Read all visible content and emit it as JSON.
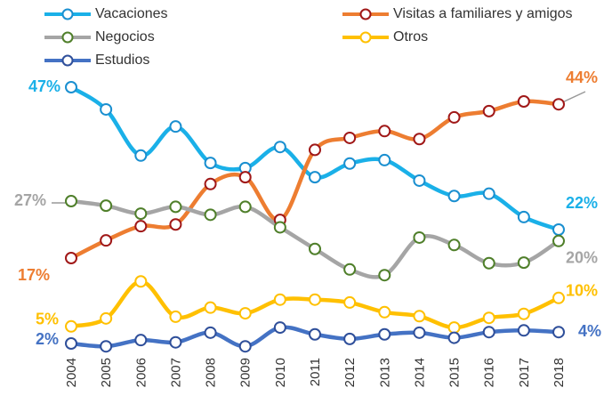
{
  "chart_data": {
    "type": "line",
    "categories": [
      "2004",
      "2005",
      "2006",
      "2007",
      "2008",
      "2009",
      "2010",
      "2011",
      "2012",
      "2013",
      "2014",
      "2015",
      "2016",
      "2017",
      "2018"
    ],
    "ylim": [
      0,
      50
    ],
    "series": [
      {
        "name": "Vacaciones",
        "color": "#1ab0e8",
        "marker_color": "#1a8fd0",
        "values": [
          47,
          43.1,
          35,
          40.1,
          33.7,
          32.8,
          36.5,
          31.2,
          33.6,
          34.2,
          30.6,
          27.9,
          28.3,
          24.2,
          22
        ],
        "value_labels": [
          "47%",
          null,
          null,
          null,
          null,
          null,
          null,
          null,
          null,
          null,
          null,
          null,
          null,
          null,
          "22%"
        ]
      },
      {
        "name": "Visitas a familiares y amigos",
        "color": "#ed7d31",
        "marker_color": "#a01818",
        "values": [
          17,
          20.1,
          22.6,
          22.9,
          30,
          31.2,
          23.7,
          36,
          38.1,
          39.3,
          37.9,
          41.7,
          42.8,
          44.5,
          44
        ],
        "value_labels": [
          "17%",
          null,
          null,
          null,
          null,
          null,
          null,
          null,
          null,
          null,
          null,
          null,
          null,
          null,
          "44%"
        ]
      },
      {
        "name": "Negocios",
        "color": "#a5a5a5",
        "marker_color": "#4f7f2a",
        "values": [
          27,
          26.2,
          24.8,
          26,
          24.6,
          26,
          22.4,
          18.6,
          15,
          14,
          20.6,
          19.3,
          16.1,
          16.2,
          20
        ],
        "value_labels": [
          "27%",
          null,
          null,
          null,
          null,
          null,
          null,
          null,
          null,
          null,
          null,
          null,
          null,
          null,
          "20%"
        ]
      },
      {
        "name": "Otros",
        "color": "#ffc000",
        "marker_color": "#ffc000",
        "values": [
          5,
          6.4,
          12.9,
          6.7,
          8.3,
          7.3,
          9.7,
          9.7,
          9.2,
          7.5,
          6.8,
          4.8,
          6.5,
          7.2,
          10
        ],
        "value_labels": [
          "5%",
          null,
          null,
          null,
          null,
          null,
          null,
          null,
          null,
          null,
          null,
          null,
          null,
          null,
          "10%"
        ]
      },
      {
        "name": "Estudios",
        "color": "#4472c4",
        "marker_color": "#2f4f9a",
        "values": [
          2,
          1.5,
          2.6,
          2.2,
          3.9,
          1.5,
          4.8,
          3.6,
          2.8,
          3.6,
          3.9,
          3,
          4,
          4.3,
          4
        ],
        "value_labels": [
          "2%",
          null,
          null,
          null,
          null,
          null,
          null,
          null,
          null,
          null,
          null,
          null,
          null,
          null,
          "4%"
        ]
      }
    ]
  }
}
